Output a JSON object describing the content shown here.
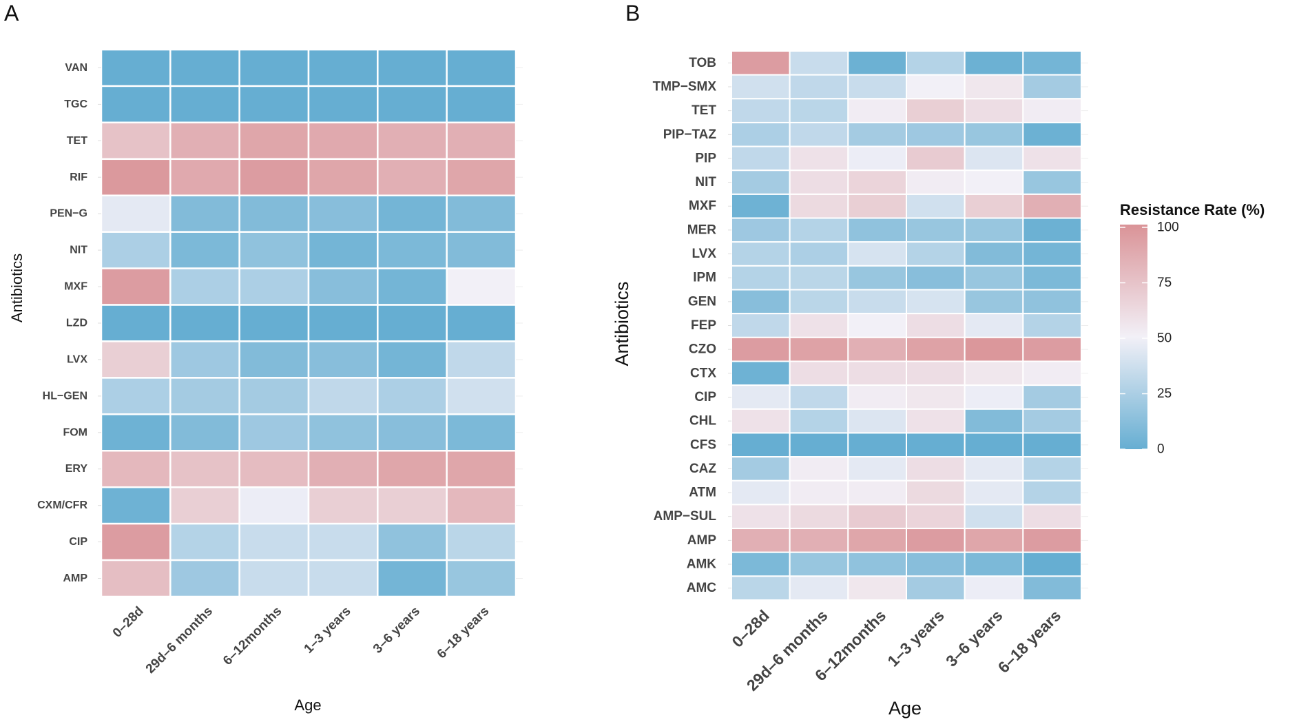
{
  "panel_labels": [
    "A",
    "B"
  ],
  "legend": {
    "title": "Resistance Rate (%)",
    "ticks": [
      "100",
      "75",
      "50",
      "25",
      "0"
    ],
    "colors": {
      "low": "#66AED2",
      "mid": "#F2F0F7",
      "high": "#DA9397"
    },
    "range": [
      0,
      100
    ]
  },
  "chart_data": [
    {
      "panel": "A",
      "type": "heatmap",
      "title": "",
      "xlabel": "Age",
      "ylabel": "Antibiotics",
      "x": [
        "0–28d",
        "29d–6 months",
        "6–12months",
        "1–3 years",
        "3–6 years",
        "6–18 years"
      ],
      "y": [
        "VAN",
        "TGC",
        "TET",
        "RIF",
        "PEN−G",
        "NIT",
        "MXF",
        "LZD",
        "LVX",
        "HL−GEN",
        "FOM",
        "ERY",
        "CXM/CFR",
        "CIP",
        "AMP"
      ],
      "values": [
        [
          0,
          0,
          0,
          0,
          0,
          0
        ],
        [
          0,
          0,
          0,
          0,
          0,
          0
        ],
        [
          75,
          85,
          90,
          88,
          85,
          85
        ],
        [
          97,
          88,
          95,
          90,
          85,
          90
        ],
        [
          45,
          10,
          10,
          12,
          5,
          10
        ],
        [
          25,
          8,
          15,
          5,
          8,
          10
        ],
        [
          95,
          25,
          25,
          12,
          5,
          50
        ],
        [
          0,
          0,
          0,
          0,
          0,
          0
        ],
        [
          68,
          20,
          10,
          12,
          5,
          32
        ],
        [
          25,
          22,
          22,
          32,
          25,
          38
        ],
        [
          3,
          10,
          20,
          15,
          12,
          8
        ],
        [
          80,
          75,
          78,
          85,
          90,
          90
        ],
        [
          3,
          68,
          48,
          68,
          68,
          80
        ],
        [
          95,
          28,
          35,
          35,
          15,
          30
        ],
        [
          77,
          20,
          35,
          35,
          5,
          18
        ]
      ],
      "value_range": [
        0,
        100
      ]
    },
    {
      "panel": "B",
      "type": "heatmap",
      "title": "",
      "xlabel": "Age",
      "ylabel": "Antibiotics",
      "x": [
        "0–28d",
        "29d–6 months",
        "6–12months",
        "1–3 years",
        "3–6 years",
        "6–18 years"
      ],
      "y": [
        "TOB",
        "TMP−SMX",
        "TET",
        "PIP−TAZ",
        "PIP",
        "NIT",
        "MXF",
        "MER",
        "LVX",
        "IPM",
        "GEN",
        "FEP",
        "CZO",
        "CTX",
        "CIP",
        "CHL",
        "CFS",
        "CAZ",
        "ATM",
        "AMP−SUL",
        "AMP",
        "AMK",
        "AMC"
      ],
      "values": [
        [
          95,
          35,
          2,
          28,
          2,
          5
        ],
        [
          38,
          32,
          35,
          50,
          55,
          22
        ],
        [
          32,
          30,
          52,
          68,
          60,
          52
        ],
        [
          25,
          32,
          22,
          20,
          18,
          2
        ],
        [
          32,
          58,
          48,
          70,
          42,
          58
        ],
        [
          22,
          60,
          65,
          52,
          50,
          18
        ],
        [
          3,
          62,
          68,
          38,
          68,
          85
        ],
        [
          20,
          28,
          15,
          18,
          18,
          2
        ],
        [
          28,
          25,
          40,
          28,
          10,
          5
        ],
        [
          28,
          30,
          18,
          12,
          18,
          8
        ],
        [
          12,
          30,
          35,
          40,
          18,
          15
        ],
        [
          32,
          58,
          50,
          60,
          45,
          28
        ],
        [
          95,
          92,
          85,
          92,
          98,
          95
        ],
        [
          3,
          60,
          60,
          60,
          55,
          52
        ],
        [
          45,
          32,
          52,
          55,
          48,
          22
        ],
        [
          58,
          28,
          42,
          58,
          10,
          22
        ],
        [
          0,
          0,
          0,
          0,
          0,
          0
        ],
        [
          22,
          52,
          45,
          60,
          45,
          28
        ],
        [
          45,
          52,
          52,
          62,
          45,
          28
        ],
        [
          58,
          62,
          70,
          65,
          38,
          60
        ],
        [
          85,
          85,
          90,
          95,
          90,
          95
        ],
        [
          8,
          18,
          15,
          12,
          8,
          0
        ],
        [
          30,
          45,
          55,
          22,
          48,
          10
        ]
      ],
      "value_range": [
        0,
        100
      ]
    }
  ]
}
